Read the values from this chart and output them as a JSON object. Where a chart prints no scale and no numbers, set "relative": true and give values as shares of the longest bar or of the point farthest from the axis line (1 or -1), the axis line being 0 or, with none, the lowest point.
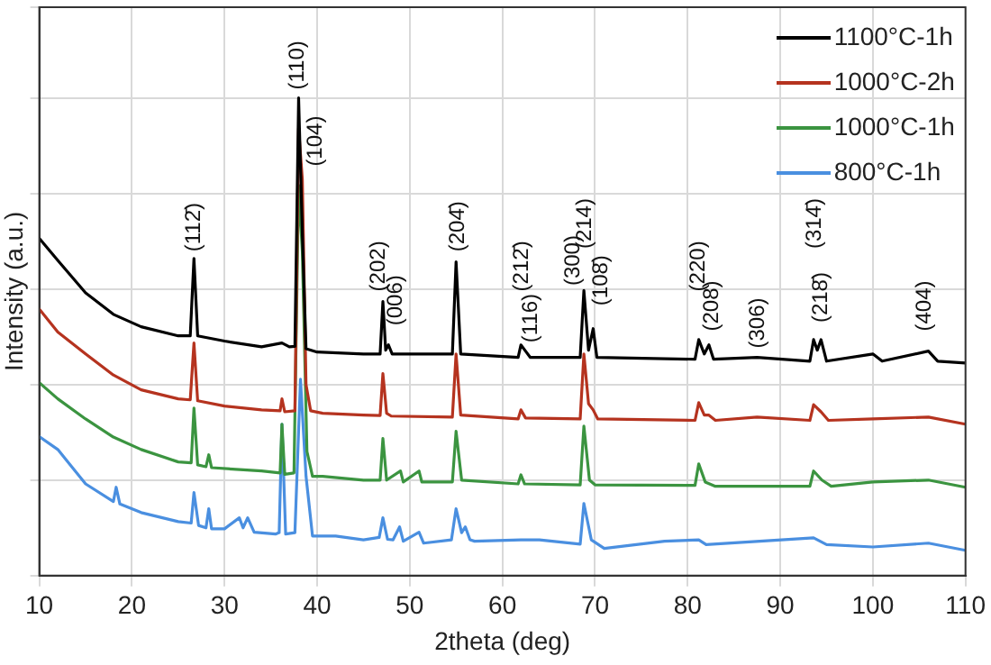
{
  "chart_data": {
    "type": "line",
    "relative": true,
    "xlabel": "2theta (deg)",
    "ylabel": "Intensity (a.u.)",
    "xlim": [
      10,
      110
    ],
    "xticks": [
      10,
      20,
      30,
      40,
      50,
      60,
      70,
      80,
      90,
      100,
      110
    ],
    "grid": true,
    "legend": "top right",
    "marker": "none",
    "line_style": "solid",
    "series": [
      {
        "name": "1100°C-1h",
        "color": "#000000",
        "x": [
          10,
          12,
          15,
          18,
          21,
          25,
          26.3,
          26.7,
          27.1,
          30,
          34,
          36.2,
          37,
          37.6,
          38.0,
          38.4,
          38.8,
          40,
          45,
          46.8,
          47.1,
          47.4,
          47.7,
          48.1,
          54.6,
          55.0,
          55.5,
          61.7,
          62,
          62.5,
          63,
          68.4,
          68.8,
          69.3,
          69.8,
          70.2,
          80.8,
          81.2,
          81.8,
          82.3,
          82.8,
          87.5,
          93.2,
          93.6,
          94.0,
          94.4,
          95,
          100,
          101,
          106,
          107,
          110
        ],
        "values": [
          0.706,
          0.66,
          0.592,
          0.547,
          0.521,
          0.502,
          0.502,
          0.664,
          0.502,
          0.491,
          0.479,
          0.487,
          0.479,
          0.48,
          1.0,
          0.717,
          0.475,
          0.468,
          0.464,
          0.464,
          0.574,
          0.472,
          0.483,
          0.464,
          0.464,
          0.657,
          0.464,
          0.457,
          0.483,
          0.47,
          0.457,
          0.457,
          0.597,
          0.472,
          0.517,
          0.457,
          0.453,
          0.494,
          0.464,
          0.483,
          0.453,
          0.457,
          0.449,
          0.494,
          0.472,
          0.494,
          0.449,
          0.464,
          0.449,
          0.47,
          0.449,
          0.445
        ]
      },
      {
        "name": "1000°C-2h",
        "color": "#b5331f",
        "x": [
          10,
          12,
          15,
          18,
          21,
          25,
          26.3,
          26.7,
          27.1,
          30,
          34,
          36,
          36.2,
          36.5,
          37.6,
          38.0,
          38.4,
          38.8,
          39.3,
          40.6,
          45,
          46.8,
          47.1,
          47.5,
          48,
          54.6,
          55.0,
          55.5,
          61.7,
          62,
          62.5,
          68.4,
          68.8,
          69.3,
          69.8,
          70.3,
          80.8,
          81.2,
          81.8,
          82.3,
          83,
          87.5,
          93.2,
          93.6,
          94.4,
          95.2,
          100,
          106,
          110
        ],
        "values": [
          0.558,
          0.51,
          0.464,
          0.42,
          0.389,
          0.37,
          0.368,
          0.487,
          0.366,
          0.355,
          0.347,
          0.345,
          0.37,
          0.343,
          0.345,
          0.936,
          0.83,
          0.4,
          0.345,
          0.34,
          0.336,
          0.335,
          0.423,
          0.34,
          0.334,
          0.332,
          0.464,
          0.336,
          0.328,
          0.347,
          0.33,
          0.328,
          0.464,
          0.36,
          0.347,
          0.328,
          0.325,
          0.362,
          0.336,
          0.336,
          0.325,
          0.332,
          0.325,
          0.358,
          0.343,
          0.325,
          0.328,
          0.332,
          0.317
        ]
      },
      {
        "name": "1000°C-1h",
        "color": "#3b9440",
        "x": [
          10,
          12,
          15,
          18,
          21,
          25,
          26.4,
          26.7,
          27.1,
          28,
          28.3,
          28.6,
          34,
          36,
          36.2,
          36.5,
          37.5,
          38.0,
          38.4,
          38.9,
          39.5,
          40.6,
          45,
          46.8,
          47.1,
          47.5,
          49,
          49.3,
          51,
          51.3,
          54.6,
          55.0,
          55.6,
          61.7,
          62,
          62.4,
          68.4,
          68.8,
          69.4,
          70,
          80.8,
          81.2,
          81.9,
          83,
          93.2,
          93.6,
          94.5,
          95.5,
          100,
          106,
          110
        ],
        "values": [
          0.404,
          0.37,
          0.328,
          0.29,
          0.264,
          0.238,
          0.236,
          0.351,
          0.232,
          0.228,
          0.253,
          0.226,
          0.219,
          0.215,
          0.317,
          0.212,
          0.215,
          0.817,
          0.679,
          0.26,
          0.208,
          0.208,
          0.2,
          0.2,
          0.287,
          0.2,
          0.219,
          0.196,
          0.219,
          0.196,
          0.196,
          0.302,
          0.2,
          0.192,
          0.211,
          0.192,
          0.19,
          0.313,
          0.2,
          0.19,
          0.189,
          0.234,
          0.196,
          0.187,
          0.187,
          0.219,
          0.2,
          0.187,
          0.196,
          0.2,
          0.185
        ]
      },
      {
        "name": "800°C-1h",
        "color": "#4a8fe0",
        "x": [
          10,
          12,
          15,
          18,
          18.3,
          18.7,
          21,
          25,
          26.4,
          26.7,
          27.2,
          28,
          28.3,
          28.6,
          30,
          31.6,
          32,
          32.5,
          33.2,
          35.5,
          35.9,
          36.2,
          36.6,
          37.6,
          38.2,
          38.8,
          39.5,
          42,
          45,
          46.7,
          47.1,
          47.6,
          48.2,
          48.9,
          49.3,
          51,
          51.5,
          54.5,
          55,
          55.6,
          56,
          56.5,
          57,
          62,
          64,
          68.4,
          68.8,
          69.6,
          71,
          77.5,
          81.2,
          82,
          93.6,
          95,
          100,
          106,
          110
        ],
        "values": [
          0.291,
          0.264,
          0.192,
          0.155,
          0.185,
          0.15,
          0.132,
          0.113,
          0.11,
          0.174,
          0.105,
          0.1,
          0.14,
          0.098,
          0.098,
          0.121,
          0.1,
          0.121,
          0.091,
          0.087,
          0.09,
          0.317,
          0.087,
          0.09,
          0.411,
          0.208,
          0.083,
          0.083,
          0.075,
          0.08,
          0.121,
          0.076,
          0.075,
          0.102,
          0.072,
          0.091,
          0.068,
          0.075,
          0.14,
          0.09,
          0.102,
          0.075,
          0.072,
          0.075,
          0.075,
          0.066,
          0.151,
          0.075,
          0.057,
          0.072,
          0.075,
          0.065,
          0.079,
          0.065,
          0.06,
          0.068,
          0.053
        ]
      }
    ],
    "annotations": [
      "(112̄)",
      "(110)",
      "(104)",
      "(202)",
      "(006)",
      "(204̄)",
      "(116)",
      "(212̄)",
      "(300)",
      "(214)",
      "(108̄)",
      "(220)",
      "(208)",
      "(306)",
      "(314̄)",
      "(218̄)",
      "(404)"
    ]
  }
}
